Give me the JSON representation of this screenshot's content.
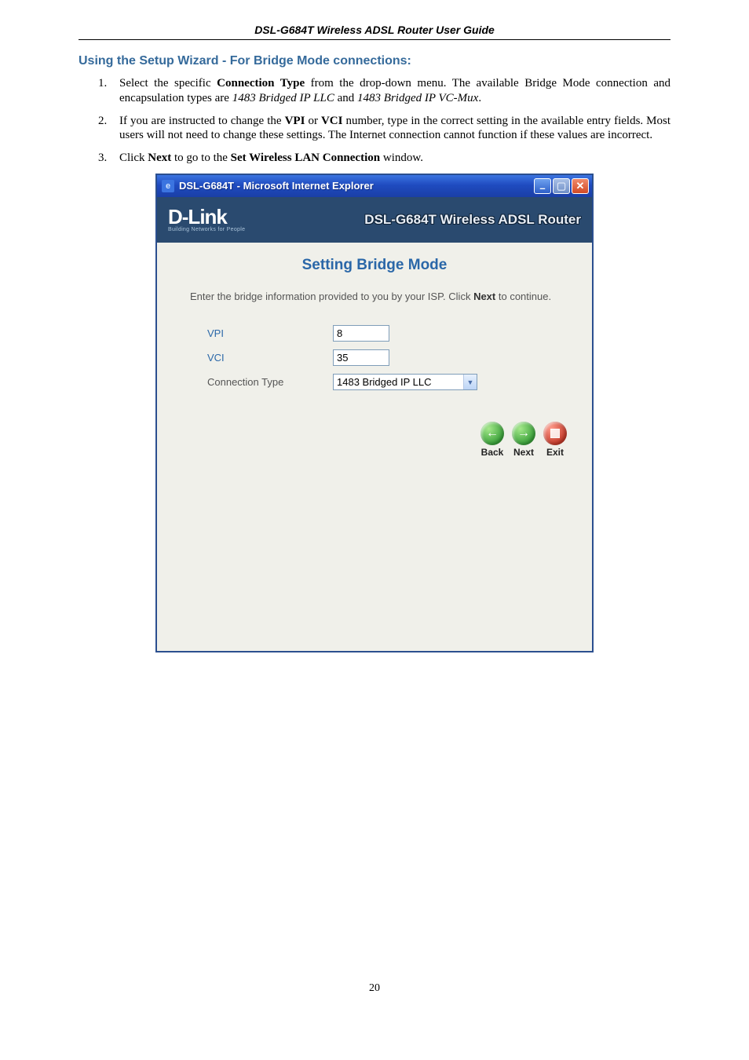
{
  "page": {
    "header": "DSL-G684T Wireless ADSL Router User Guide",
    "footer_page": "20"
  },
  "heading": {
    "text": "Using the Setup Wizard - For Bridge Mode connections:",
    "color": "#356a9b"
  },
  "steps": [
    {
      "segments": [
        {
          "t": "Select the specific "
        },
        {
          "t": "Connection Type",
          "style": "bold"
        },
        {
          "t": " from the drop-down menu. The available Bridge Mode connection and encapsulation types are "
        },
        {
          "t": "1483 Bridged IP LLC",
          "style": "italic"
        },
        {
          "t": " and "
        },
        {
          "t": "1483 Bridged IP VC-Mux",
          "style": "italic"
        },
        {
          "t": "."
        }
      ]
    },
    {
      "segments": [
        {
          "t": "If you are instructed to change the "
        },
        {
          "t": "VPI",
          "style": "bold"
        },
        {
          "t": " or "
        },
        {
          "t": "VCI",
          "style": "bold"
        },
        {
          "t": " number, type in the correct setting in the available entry fields. Most users will not need to change these settings. The Internet connection cannot function if these values are incorrect."
        }
      ]
    },
    {
      "segments": [
        {
          "t": "Click "
        },
        {
          "t": "Next",
          "style": "bold"
        },
        {
          "t": " to go to the "
        },
        {
          "t": "Set Wireless LAN Connection",
          "style": "bold"
        },
        {
          "t": " window."
        }
      ]
    }
  ],
  "window": {
    "title": "DSL-G684T - Microsoft Internet Explorer",
    "titlebar_buttons": {
      "min": "–",
      "max": "▢",
      "close": "✕"
    },
    "banner": {
      "logo_main": "D-Link",
      "logo_tagline": "Building Networks for People",
      "title": "DSL-G684T Wireless ADSL Router",
      "bg_color": "#2a4a6f"
    },
    "wizard": {
      "title": "Setting Bridge Mode",
      "title_color": "#2a67a8",
      "instruction_pre": "Enter the bridge information provided to you by your ISP. Click ",
      "instruction_bold": "Next",
      "instruction_post": " to continue.",
      "fields": {
        "vpi": {
          "label": "VPI",
          "value": "8",
          "label_color": "#2a67a8"
        },
        "vci": {
          "label": "VCI",
          "value": "35",
          "label_color": "#2a67a8"
        },
        "conn_type": {
          "label": "Connection Type",
          "value": "1483 Bridged IP LLC",
          "label_color": "#555555"
        }
      },
      "nav": {
        "back": "Back",
        "next": "Next",
        "exit": "Exit"
      }
    },
    "content_bg": "#f0f0ea"
  }
}
